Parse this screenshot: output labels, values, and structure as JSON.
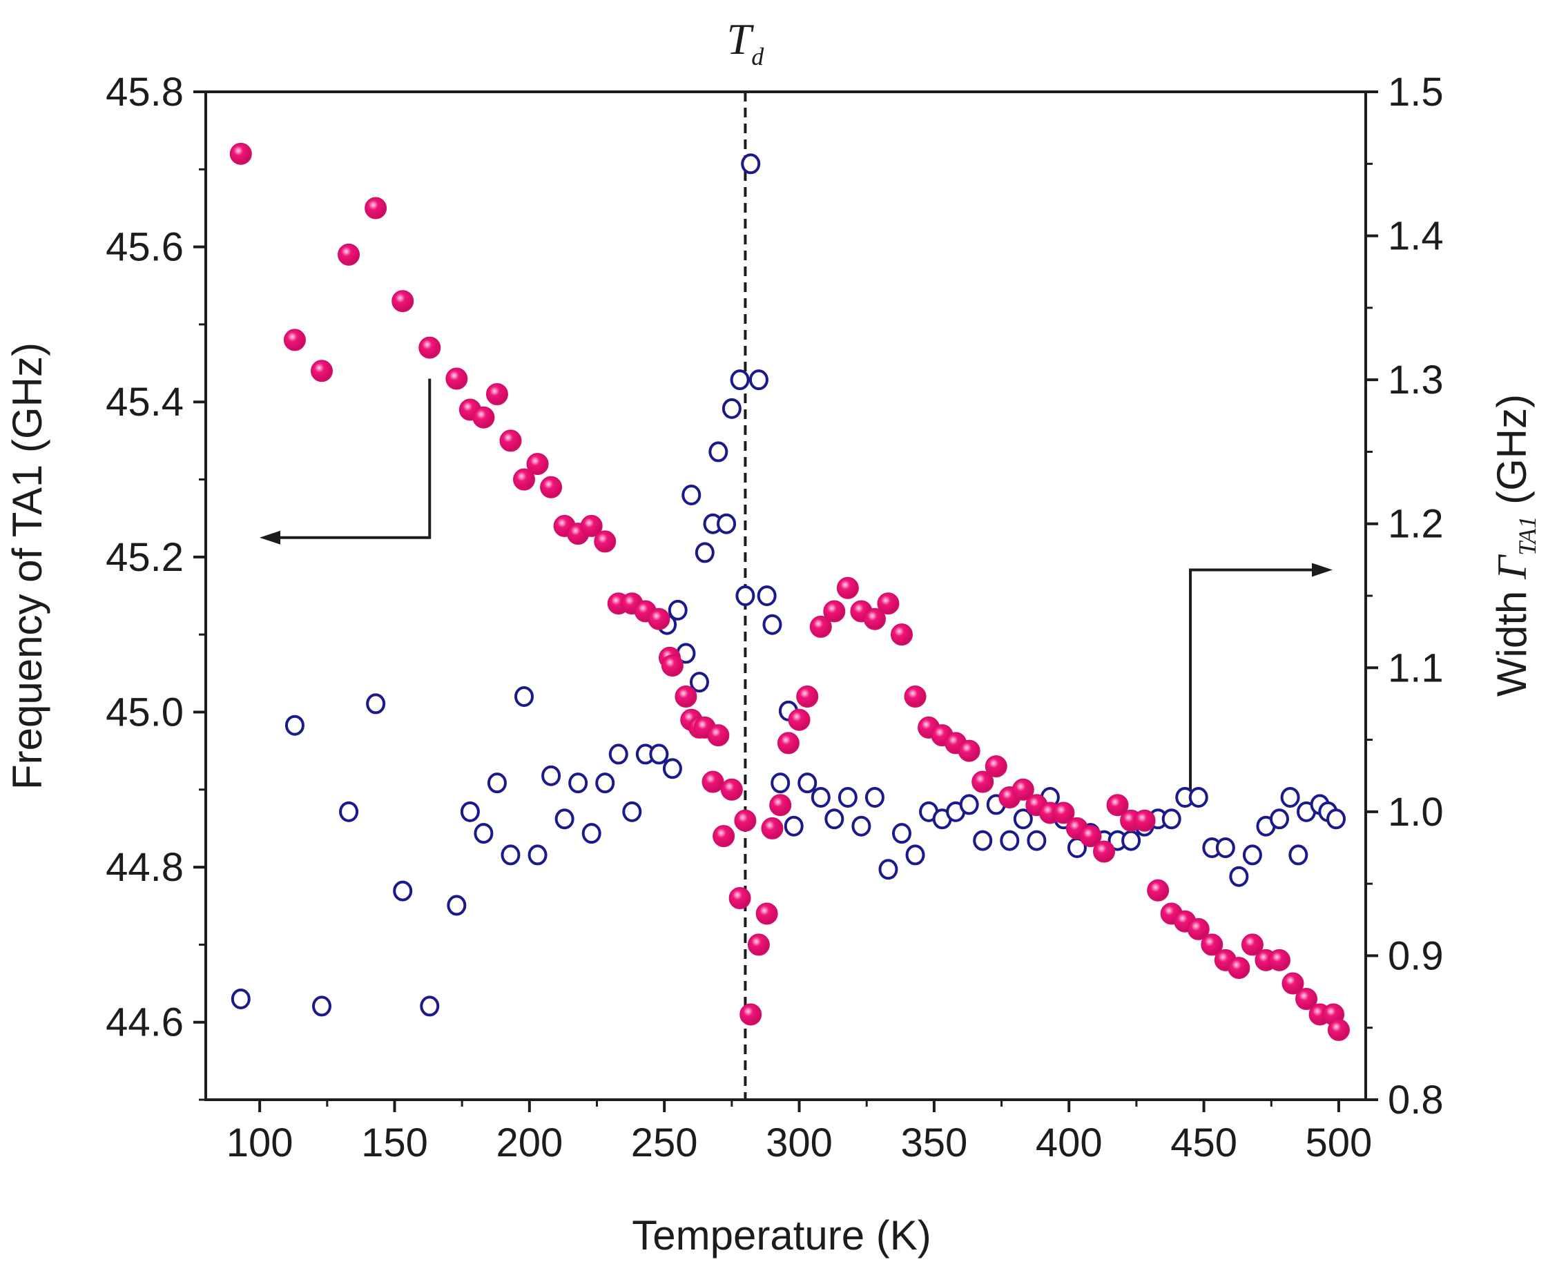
{
  "chart_data": {
    "type": "scatter",
    "title": "",
    "xlabel": "Temperature (K)",
    "ylabel_left": "Frequency of TA1 (GHz)",
    "ylabel_right_prefix": "Width ",
    "ylabel_right_symbol": "Γ",
    "ylabel_right_sub": "TA1",
    "ylabel_right_suffix": " (GHz)",
    "xlim": [
      80,
      510
    ],
    "ylim_left": [
      44.5,
      45.8
    ],
    "ylim_right": [
      0.8,
      1.5
    ],
    "xticks": [
      100,
      150,
      200,
      250,
      300,
      350,
      400,
      450,
      500
    ],
    "xtick_labels": [
      "100",
      "150",
      "200",
      "250",
      "300",
      "350",
      "400",
      "450",
      "500"
    ],
    "yticks_left": [
      44.6,
      44.8,
      45.0,
      45.2,
      45.4,
      45.6,
      45.8
    ],
    "ytick_labels_left": [
      "44.6",
      "44.8",
      "45.0",
      "45.2",
      "45.4",
      "45.6",
      "45.8"
    ],
    "yticks_right": [
      0.8,
      0.9,
      1.0,
      1.1,
      1.2,
      1.3,
      1.4,
      1.5
    ],
    "ytick_labels_right": [
      "0.8",
      "0.9",
      "1.0",
      "1.1",
      "1.2",
      "1.3",
      "1.4",
      "1.5"
    ],
    "vline": {
      "x": 280,
      "label_main": "T",
      "label_sub": "d",
      "style": "dashed"
    },
    "grid": false,
    "colors": {
      "frequency": "#f0147a",
      "width": "#1a1a8c",
      "axis": "#1c1c1c"
    },
    "series": [
      {
        "name": "Frequency of TA1",
        "axis": "left",
        "marker": "filled-circle",
        "x": [
          93,
          113,
          123,
          133,
          143,
          153,
          163,
          173,
          178,
          183,
          188,
          193,
          198,
          203,
          208,
          213,
          218,
          223,
          228,
          233,
          238,
          243,
          248,
          252,
          253,
          258,
          260,
          263,
          265,
          268,
          270,
          272,
          275,
          278,
          280,
          282,
          285,
          288,
          290,
          293,
          296,
          300,
          303,
          308,
          313,
          318,
          323,
          328,
          333,
          338,
          343,
          348,
          353,
          358,
          363,
          368,
          373,
          378,
          383,
          388,
          393,
          398,
          403,
          408,
          413,
          418,
          423,
          428,
          433,
          438,
          443,
          448,
          453,
          458,
          463,
          468,
          473,
          478,
          483,
          488,
          493,
          498,
          500
        ],
        "y": [
          45.72,
          45.48,
          45.44,
          45.59,
          45.65,
          45.53,
          45.47,
          45.43,
          45.39,
          45.38,
          45.41,
          45.35,
          45.3,
          45.32,
          45.29,
          45.24,
          45.23,
          45.24,
          45.22,
          45.14,
          45.14,
          45.13,
          45.12,
          45.07,
          45.06,
          45.02,
          44.99,
          44.98,
          44.98,
          44.91,
          44.97,
          44.84,
          44.9,
          44.76,
          44.86,
          44.61,
          44.7,
          44.74,
          44.85,
          44.88,
          44.96,
          44.99,
          45.02,
          45.11,
          45.13,
          45.16,
          45.13,
          45.12,
          45.14,
          45.1,
          45.02,
          44.98,
          44.97,
          44.96,
          44.95,
          44.91,
          44.93,
          44.89,
          44.9,
          44.88,
          44.87,
          44.87,
          44.85,
          44.84,
          44.82,
          44.88,
          44.86,
          44.86,
          44.77,
          44.74,
          44.73,
          44.72,
          44.7,
          44.68,
          44.67,
          44.7,
          44.68,
          44.68,
          44.65,
          44.63,
          44.61,
          44.61,
          44.59
        ]
      },
      {
        "name": "Width ΓTA1",
        "axis": "right",
        "marker": "open-circle",
        "x": [
          93,
          113,
          123,
          133,
          143,
          153,
          163,
          173,
          178,
          183,
          188,
          193,
          198,
          203,
          208,
          213,
          218,
          223,
          228,
          233,
          238,
          243,
          248,
          251,
          253,
          255,
          258,
          260,
          263,
          265,
          268,
          270,
          273,
          275,
          278,
          280,
          282,
          285,
          288,
          290,
          293,
          296,
          298,
          303,
          308,
          313,
          318,
          323,
          328,
          333,
          338,
          343,
          348,
          353,
          358,
          363,
          368,
          373,
          378,
          383,
          388,
          393,
          398,
          403,
          408,
          413,
          418,
          423,
          428,
          433,
          438,
          443,
          448,
          453,
          458,
          463,
          468,
          473,
          478,
          482,
          485,
          488,
          493,
          496,
          499
        ],
        "y": [
          0.87,
          1.06,
          0.865,
          1.0,
          1.075,
          0.945,
          0.865,
          0.935,
          1.0,
          0.985,
          1.02,
          0.97,
          1.08,
          0.97,
          1.025,
          0.995,
          1.02,
          0.985,
          1.02,
          1.04,
          1.0,
          1.04,
          1.04,
          1.13,
          1.03,
          1.14,
          1.11,
          1.22,
          1.09,
          1.18,
          1.2,
          1.25,
          1.2,
          1.28,
          1.3,
          1.15,
          1.45,
          1.3,
          1.15,
          1.13,
          1.02,
          1.07,
          0.99,
          1.02,
          1.01,
          0.995,
          1.01,
          0.99,
          1.01,
          0.96,
          0.985,
          0.97,
          1.0,
          0.995,
          1.0,
          1.005,
          0.98,
          1.005,
          0.98,
          0.995,
          0.98,
          1.01,
          0.995,
          0.975,
          0.985,
          0.98,
          0.98,
          0.98,
          0.99,
          0.995,
          0.995,
          1.01,
          1.01,
          0.975,
          0.975,
          0.955,
          0.97,
          0.99,
          0.995,
          1.01,
          0.97,
          1.0,
          1.005,
          1.0,
          0.995
        ]
      }
    ],
    "annotations": [
      {
        "type": "arrow",
        "points_to": "left-axis",
        "anchor_series": "Frequency of TA1"
      },
      {
        "type": "arrow",
        "points_to": "right-axis",
        "anchor_series": "Width ΓTA1"
      }
    ]
  }
}
